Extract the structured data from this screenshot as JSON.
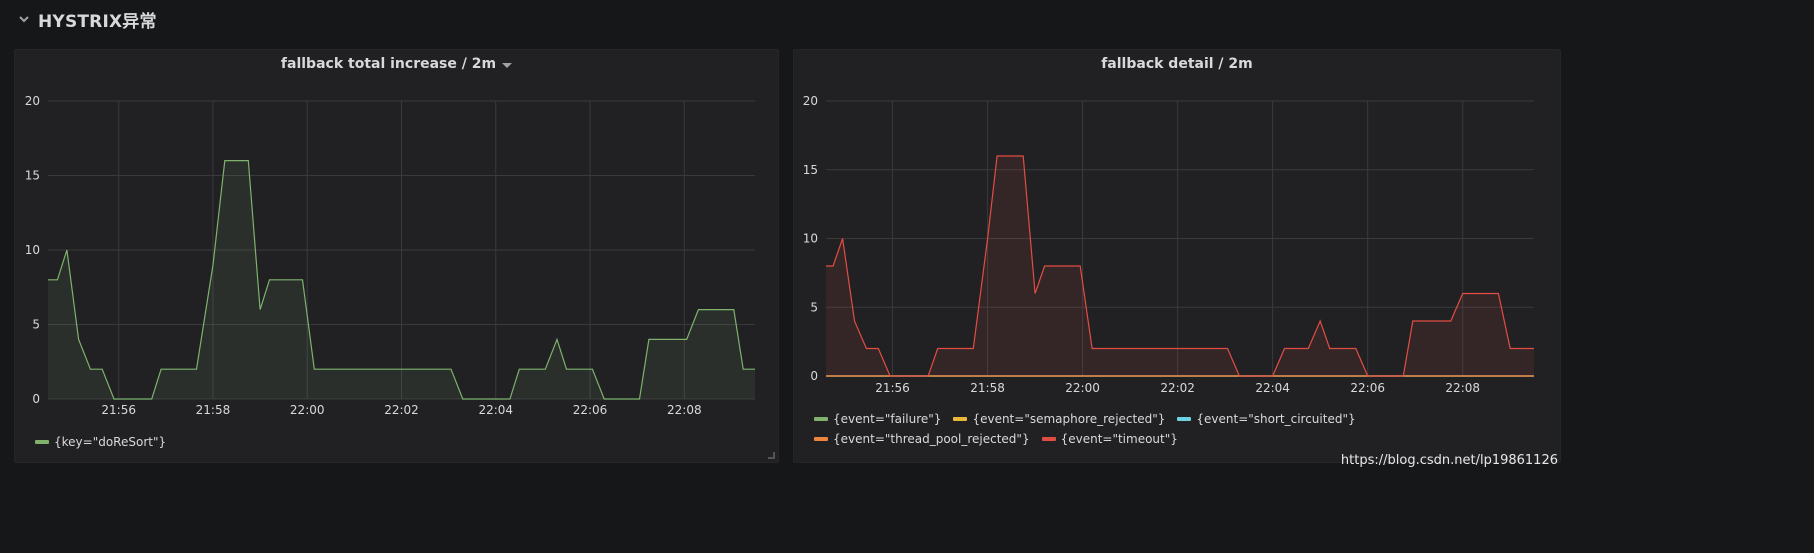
{
  "row": {
    "title": "HYSTRIX异常",
    "icon": "chevron-down-icon"
  },
  "watermark": "https://blog.csdn.net/lp19861126",
  "colors": {
    "background": "#161719",
    "panel": "#212124",
    "grid": "#3a3a3e",
    "green": "#7eb26d",
    "yellow": "#eab839",
    "cyan": "#6ed0e0",
    "orange": "#ef843c",
    "red": "#e24d42"
  },
  "chart_data": [
    {
      "type": "area",
      "title": "fallback total increase / 2m",
      "xlabel": "",
      "ylabel": "",
      "ylim": [
        0,
        20
      ],
      "yticks": [
        "0",
        "5",
        "10",
        "15",
        "20"
      ],
      "xlim": [
        -1.5,
        13.5
      ],
      "xticks": [
        {
          "t": 0,
          "label": "21:56"
        },
        {
          "t": 2,
          "label": "21:58"
        },
        {
          "t": 4,
          "label": "22:00"
        },
        {
          "t": 6,
          "label": "22:02"
        },
        {
          "t": 8,
          "label": "22:04"
        },
        {
          "t": 10,
          "label": "22:06"
        },
        {
          "t": 12,
          "label": "22:08"
        }
      ],
      "grid": true,
      "legend_position": "bottom-left",
      "series": [
        {
          "name": "{key=\"doReSort\"}",
          "color": "#7eb26d",
          "points": [
            [
              -1.5,
              8
            ],
            [
              -1.3,
              8
            ],
            [
              -1.1,
              10
            ],
            [
              -0.85,
              4
            ],
            [
              -0.6,
              2
            ],
            [
              -0.35,
              2
            ],
            [
              -0.1,
              0
            ],
            [
              0.7,
              0
            ],
            [
              0.9,
              2
            ],
            [
              1.65,
              2
            ],
            [
              2.0,
              9
            ],
            [
              2.25,
              16
            ],
            [
              2.75,
              16
            ],
            [
              3.0,
              6
            ],
            [
              3.2,
              8
            ],
            [
              3.9,
              8
            ],
            [
              4.15,
              2
            ],
            [
              7.05,
              2
            ],
            [
              7.3,
              0
            ],
            [
              8.3,
              0
            ],
            [
              8.5,
              2
            ],
            [
              9.05,
              2
            ],
            [
              9.3,
              4
            ],
            [
              9.5,
              2
            ],
            [
              10.05,
              2
            ],
            [
              10.3,
              0
            ],
            [
              11.05,
              0
            ],
            [
              11.25,
              4
            ],
            [
              12.05,
              4
            ],
            [
              12.3,
              6
            ],
            [
              13.05,
              6
            ],
            [
              13.25,
              2
            ],
            [
              13.5,
              2
            ]
          ]
        }
      ]
    },
    {
      "type": "area",
      "title": "fallback detail / 2m",
      "xlabel": "",
      "ylabel": "",
      "ylim": [
        0,
        20
      ],
      "yticks": [
        "0",
        "5",
        "10",
        "15",
        "20"
      ],
      "xlim": [
        -1.4,
        13.5
      ],
      "xticks": [
        {
          "t": 0,
          "label": "21:56"
        },
        {
          "t": 2,
          "label": "21:58"
        },
        {
          "t": 4,
          "label": "22:00"
        },
        {
          "t": 6,
          "label": "22:02"
        },
        {
          "t": 8,
          "label": "22:04"
        },
        {
          "t": 10,
          "label": "22:06"
        },
        {
          "t": 12,
          "label": "22:08"
        }
      ],
      "grid": true,
      "legend_position": "bottom-left",
      "series": [
        {
          "name": "{event=\"failure\"}",
          "color": "#7eb26d",
          "points": [
            [
              -1.4,
              0
            ],
            [
              13.5,
              0
            ]
          ]
        },
        {
          "name": "{event=\"semaphore_rejected\"}",
          "color": "#eab839",
          "points": [
            [
              -1.4,
              0
            ],
            [
              13.5,
              0
            ]
          ]
        },
        {
          "name": "{event=\"short_circuited\"}",
          "color": "#6ed0e0",
          "points": [
            [
              -1.4,
              0
            ],
            [
              13.5,
              0
            ]
          ]
        },
        {
          "name": "{event=\"thread_pool_rejected\"}",
          "color": "#ef843c",
          "points": [
            [
              -1.4,
              0
            ],
            [
              13.5,
              0
            ]
          ]
        },
        {
          "name": "{event=\"timeout\"}",
          "color": "#e24d42",
          "points": [
            [
              -1.4,
              8
            ],
            [
              -1.25,
              8
            ],
            [
              -1.05,
              10
            ],
            [
              -0.8,
              4
            ],
            [
              -0.55,
              2
            ],
            [
              -0.3,
              2
            ],
            [
              -0.05,
              0
            ],
            [
              0.75,
              0
            ],
            [
              0.95,
              2
            ],
            [
              1.7,
              2
            ],
            [
              2.0,
              10
            ],
            [
              2.2,
              16
            ],
            [
              2.75,
              16
            ],
            [
              3.0,
              6
            ],
            [
              3.2,
              8
            ],
            [
              3.95,
              8
            ],
            [
              4.2,
              2
            ],
            [
              7.05,
              2
            ],
            [
              7.3,
              0
            ],
            [
              8.0,
              0
            ],
            [
              8.25,
              2
            ],
            [
              8.75,
              2
            ],
            [
              9.0,
              4
            ],
            [
              9.2,
              2
            ],
            [
              9.75,
              2
            ],
            [
              10.0,
              0
            ],
            [
              10.75,
              0
            ],
            [
              10.95,
              4
            ],
            [
              11.75,
              4
            ],
            [
              12.0,
              6
            ],
            [
              12.75,
              6
            ],
            [
              13.0,
              2
            ],
            [
              13.5,
              2
            ]
          ]
        }
      ]
    }
  ]
}
